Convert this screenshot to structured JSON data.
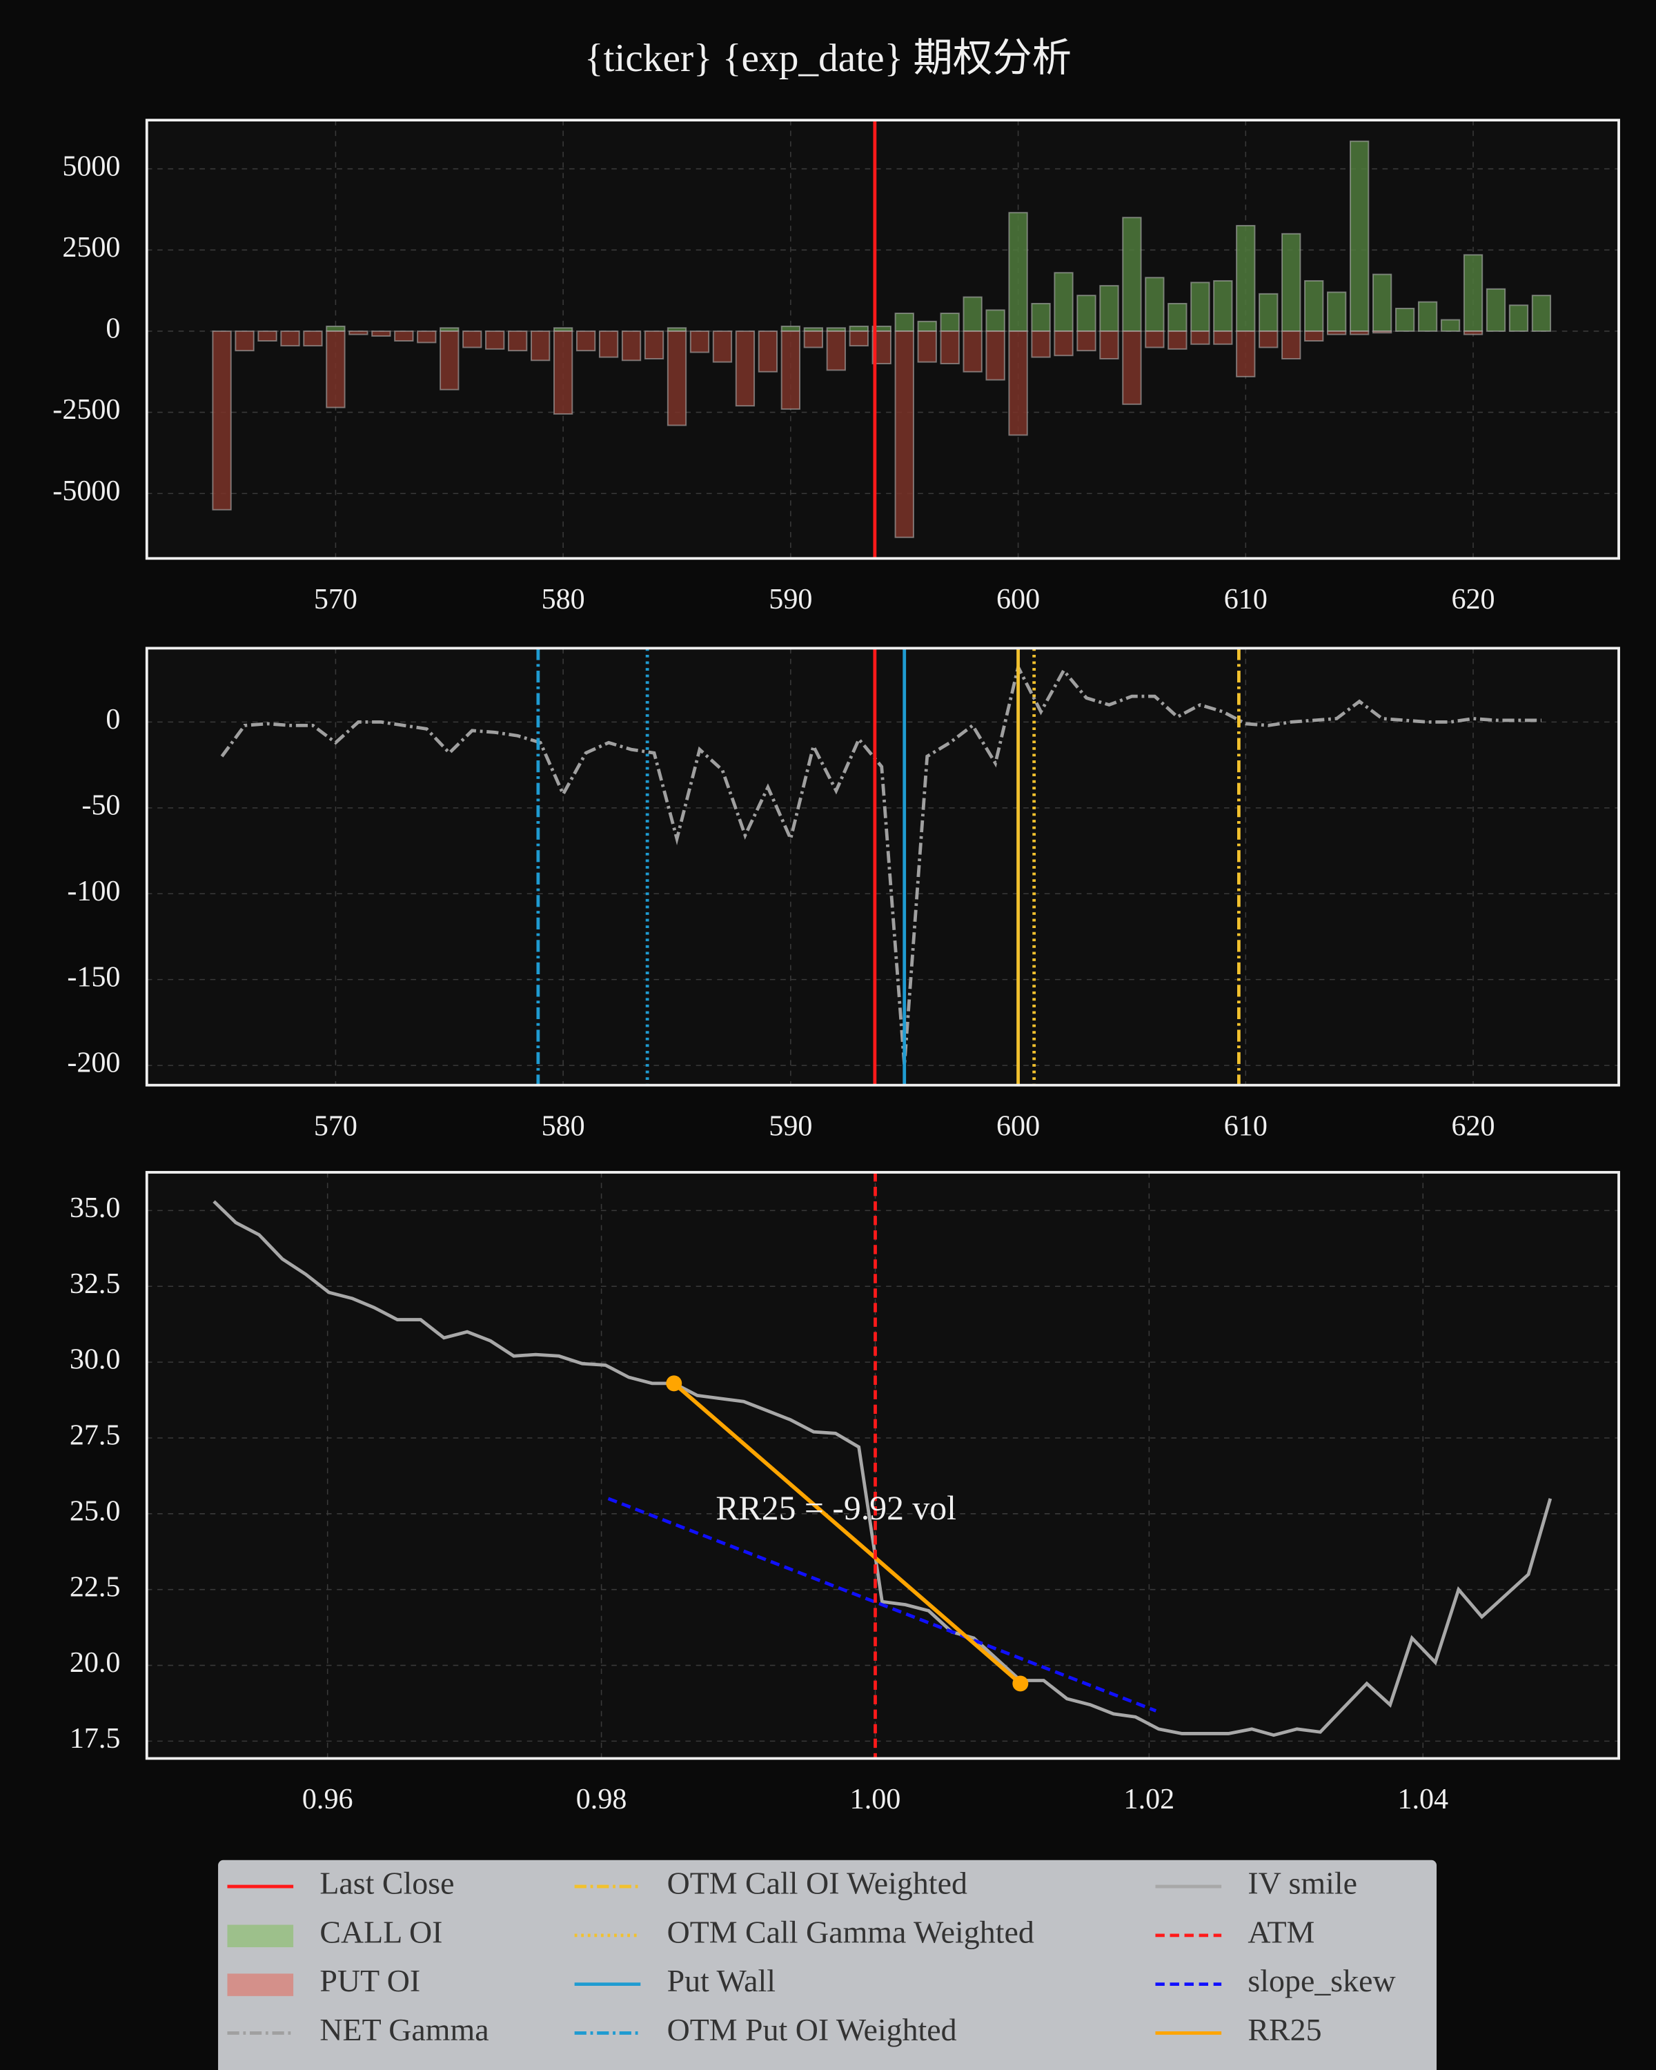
{
  "title": "{ticker} {exp_date} 期权分析",
  "chart_data": [
    {
      "type": "bar",
      "x": [
        565,
        566,
        567,
        568,
        569,
        570,
        571,
        572,
        573,
        574,
        575,
        576,
        577,
        578,
        579,
        580,
        581,
        582,
        583,
        584,
        585,
        586,
        587,
        588,
        589,
        590,
        591,
        592,
        593,
        594,
        595,
        596,
        597,
        598,
        599,
        600,
        601,
        602,
        603,
        604,
        605,
        606,
        607,
        608,
        609,
        610,
        611,
        612,
        613,
        614,
        615,
        616,
        617,
        618,
        619,
        620,
        621,
        622,
        623
      ],
      "series": [
        {
          "color": "#4f7a3c",
          "values": [
            0,
            0,
            0,
            0,
            0,
            150,
            0,
            0,
            0,
            0,
            100,
            0,
            0,
            0,
            0,
            100,
            0,
            0,
            0,
            0,
            100,
            0,
            0,
            0,
            0,
            150,
            100,
            100,
            150,
            150,
            550,
            300,
            550,
            1050,
            650,
            3650,
            850,
            1800,
            1100,
            1400,
            3500,
            1650,
            850,
            1500,
            1550,
            3250,
            1150,
            3000,
            1550,
            1200,
            5850,
            1750,
            700,
            900,
            350,
            2350,
            1300,
            800,
            1100
          ]
        },
        {
          "color": "#7a3328",
          "values": [
            -5500,
            -600,
            -300,
            -450,
            -450,
            -2350,
            -100,
            -150,
            -300,
            -350,
            -1800,
            -500,
            -550,
            -600,
            -900,
            -2550,
            -600,
            -800,
            -900,
            -850,
            -2900,
            -650,
            -950,
            -2300,
            -1250,
            -2400,
            -500,
            -1200,
            -450,
            -1000,
            -6350,
            -950,
            -1000,
            -1250,
            -1500,
            -3200,
            -800,
            -750,
            -600,
            -850,
            -2250,
            -500,
            -550,
            -400,
            -400,
            -1400,
            -500,
            -850,
            -300,
            -100,
            -100,
            -50,
            0,
            0,
            0,
            -100,
            0,
            0,
            0
          ]
        }
      ],
      "vlines": [
        {
          "x": 593.7,
          "color": "#ff1a1a",
          "style": "solid"
        }
      ],
      "xlim": [
        561.7,
        626.4
      ],
      "xticks": [
        570,
        580,
        590,
        600,
        610,
        620
      ],
      "ylim": [
        -7000,
        6500
      ],
      "yticks": [
        -5000,
        -2500,
        0,
        2500,
        5000
      ],
      "grid": true
    },
    {
      "type": "line",
      "x": [
        565,
        566,
        567,
        568,
        569,
        570,
        571,
        572,
        573,
        574,
        575,
        576,
        577,
        578,
        579,
        580,
        581,
        582,
        583,
        584,
        585,
        586,
        587,
        588,
        589,
        590,
        591,
        592,
        593,
        594,
        595,
        596,
        597,
        598,
        599,
        600,
        601,
        602,
        603,
        604,
        605,
        606,
        607,
        608,
        609,
        610,
        611,
        612,
        613,
        614,
        615,
        616,
        617,
        618,
        619,
        620,
        621,
        622,
        623
      ],
      "series": [
        {
          "color": "#a0a0a0",
          "style": "dashdot",
          "values": [
            -20,
            -2,
            -1,
            -2,
            -2,
            -12,
            0,
            0,
            -2,
            -4,
            -18,
            -5,
            -6,
            -8,
            -12,
            -42,
            -18,
            -12,
            -16,
            -18,
            -68,
            -16,
            -28,
            -66,
            -38,
            -68,
            -14,
            -40,
            -10,
            -26,
            -200,
            -20,
            -12,
            -2,
            -24,
            32,
            6,
            30,
            14,
            10,
            15,
            15,
            3,
            10,
            6,
            -1,
            -2,
            0,
            1,
            2,
            12,
            2,
            1,
            0,
            0,
            2,
            1,
            1,
            1
          ]
        }
      ],
      "vlines": [
        {
          "x": 578.9,
          "color": "#1f9bd1",
          "style": "dashdot"
        },
        {
          "x": 583.7,
          "color": "#1f9bd1",
          "style": "dotted"
        },
        {
          "x": 593.7,
          "color": "#ff1a1a",
          "style": "solid"
        },
        {
          "x": 595.0,
          "color": "#1f9bd1",
          "style": "solid"
        },
        {
          "x": 600.0,
          "color": "#f2c12e",
          "style": "solid"
        },
        {
          "x": 600.7,
          "color": "#f2c12e",
          "style": "dotted"
        },
        {
          "x": 609.7,
          "color": "#f2c12e",
          "style": "dashdot"
        }
      ],
      "xlim": [
        561.7,
        626.4
      ],
      "xticks": [
        570,
        580,
        590,
        600,
        610,
        620
      ],
      "ylim": [
        -211.5,
        43
      ],
      "yticks": [
        -200,
        -150,
        -100,
        -50,
        0
      ],
      "grid": true
    },
    {
      "type": "line",
      "x": [
        0.9517,
        0.9533,
        0.955,
        0.9567,
        0.9584,
        0.9601,
        0.9618,
        0.9634,
        0.9651,
        0.9668,
        0.9685,
        0.9702,
        0.9719,
        0.9736,
        0.9752,
        0.9769,
        0.9786,
        0.9803,
        0.982,
        0.9837,
        0.9853,
        0.987,
        0.9887,
        0.9904,
        0.9921,
        0.9938,
        0.9955,
        0.9971,
        0.9988,
        1.0005,
        1.0022,
        1.0039,
        1.0056,
        1.0072,
        1.0089,
        1.0106,
        1.0123,
        1.014,
        1.0157,
        1.0174,
        1.019,
        1.0207,
        1.0224,
        1.0241,
        1.0258,
        1.0275,
        1.0291,
        1.0308,
        1.0325,
        1.0342,
        1.0359,
        1.0376,
        1.0392,
        1.0409,
        1.0426,
        1.0443,
        1.046,
        1.0477,
        1.0493
      ],
      "series": [
        {
          "color": "#a8a8a8",
          "style": "solid",
          "values": [
            35.3,
            34.6,
            34.2,
            33.4,
            32.9,
            32.3,
            32.1,
            31.8,
            31.4,
            31.4,
            30.8,
            31.0,
            30.7,
            30.2,
            30.25,
            30.2,
            29.95,
            29.9,
            29.5,
            29.3,
            29.3,
            28.9,
            28.8,
            28.7,
            28.4,
            28.1,
            27.7,
            27.65,
            27.2,
            22.1,
            22.0,
            21.8,
            21.1,
            20.9,
            20.2,
            19.5,
            19.5,
            18.9,
            18.7,
            18.4,
            18.3,
            17.9,
            17.75,
            17.75,
            17.75,
            17.9,
            17.7,
            17.9,
            17.8,
            18.6,
            19.4,
            18.7,
            20.9,
            20.1,
            22.5,
            21.6,
            22.3,
            23.0,
            25.5
          ]
        },
        {
          "color": "#1010ff",
          "style": "dashed",
          "x": [
            0.9805,
            1.0205
          ],
          "values": [
            25.5,
            18.5
          ]
        },
        {
          "color": "#ffa500",
          "style": "solid",
          "markers": true,
          "x": [
            0.9853,
            1.0106
          ],
          "values": [
            29.3,
            19.4
          ]
        }
      ],
      "vlines": [
        {
          "x": 1,
          "color": "#ff1a1a",
          "style": "dashed"
        }
      ],
      "annotation": "RR25 = -9.92 vol",
      "xlim": [
        0.9468,
        1.0543
      ],
      "xticks": [
        0.96,
        0.98,
        {
          "value": 1,
          "label": "1.00"
        },
        1.02,
        1.04
      ],
      "ylim": [
        16.93,
        36.26
      ],
      "yticks": [
        17.5,
        {
          "value": 20,
          "label": "20.0"
        },
        22.5,
        {
          "value": 25,
          "label": "25.0"
        },
        27.5,
        {
          "value": 30,
          "label": "30.0"
        },
        32.5,
        {
          "value": 35,
          "label": "35.0"
        }
      ],
      "grid": true
    }
  ],
  "legend": [
    {
      "label": "Last Close",
      "color": "#ff1a1a",
      "style": "solid"
    },
    {
      "label": "CALL OI",
      "color": "#9dc08b",
      "style": "patch"
    },
    {
      "label": "PUT OI",
      "color": "#d4908a",
      "style": "patch"
    },
    {
      "label": "NET Gamma",
      "color": "#a0a0a0",
      "style": "dashdot"
    },
    {
      "label": "OTM Call OI Weighted",
      "color": "#f2c12e",
      "style": "dashdot"
    },
    {
      "label": "OTM Call Gamma Weighted",
      "color": "#f2c12e",
      "style": "dotted"
    },
    {
      "label": "Put Wall",
      "color": "#1f9bd1",
      "style": "solid"
    },
    {
      "label": "OTM Put OI Weighted",
      "color": "#1f9bd1",
      "style": "dashdot"
    },
    {
      "label": "IV smile",
      "color": "#a8a8a8",
      "style": "solid"
    },
    {
      "label": "ATM",
      "color": "#ff1a1a",
      "style": "dashed"
    },
    {
      "label": "slope_skew",
      "color": "#1010ff",
      "style": "dashed"
    },
    {
      "label": "RR25",
      "color": "#ffa500",
      "style": "solid"
    }
  ]
}
